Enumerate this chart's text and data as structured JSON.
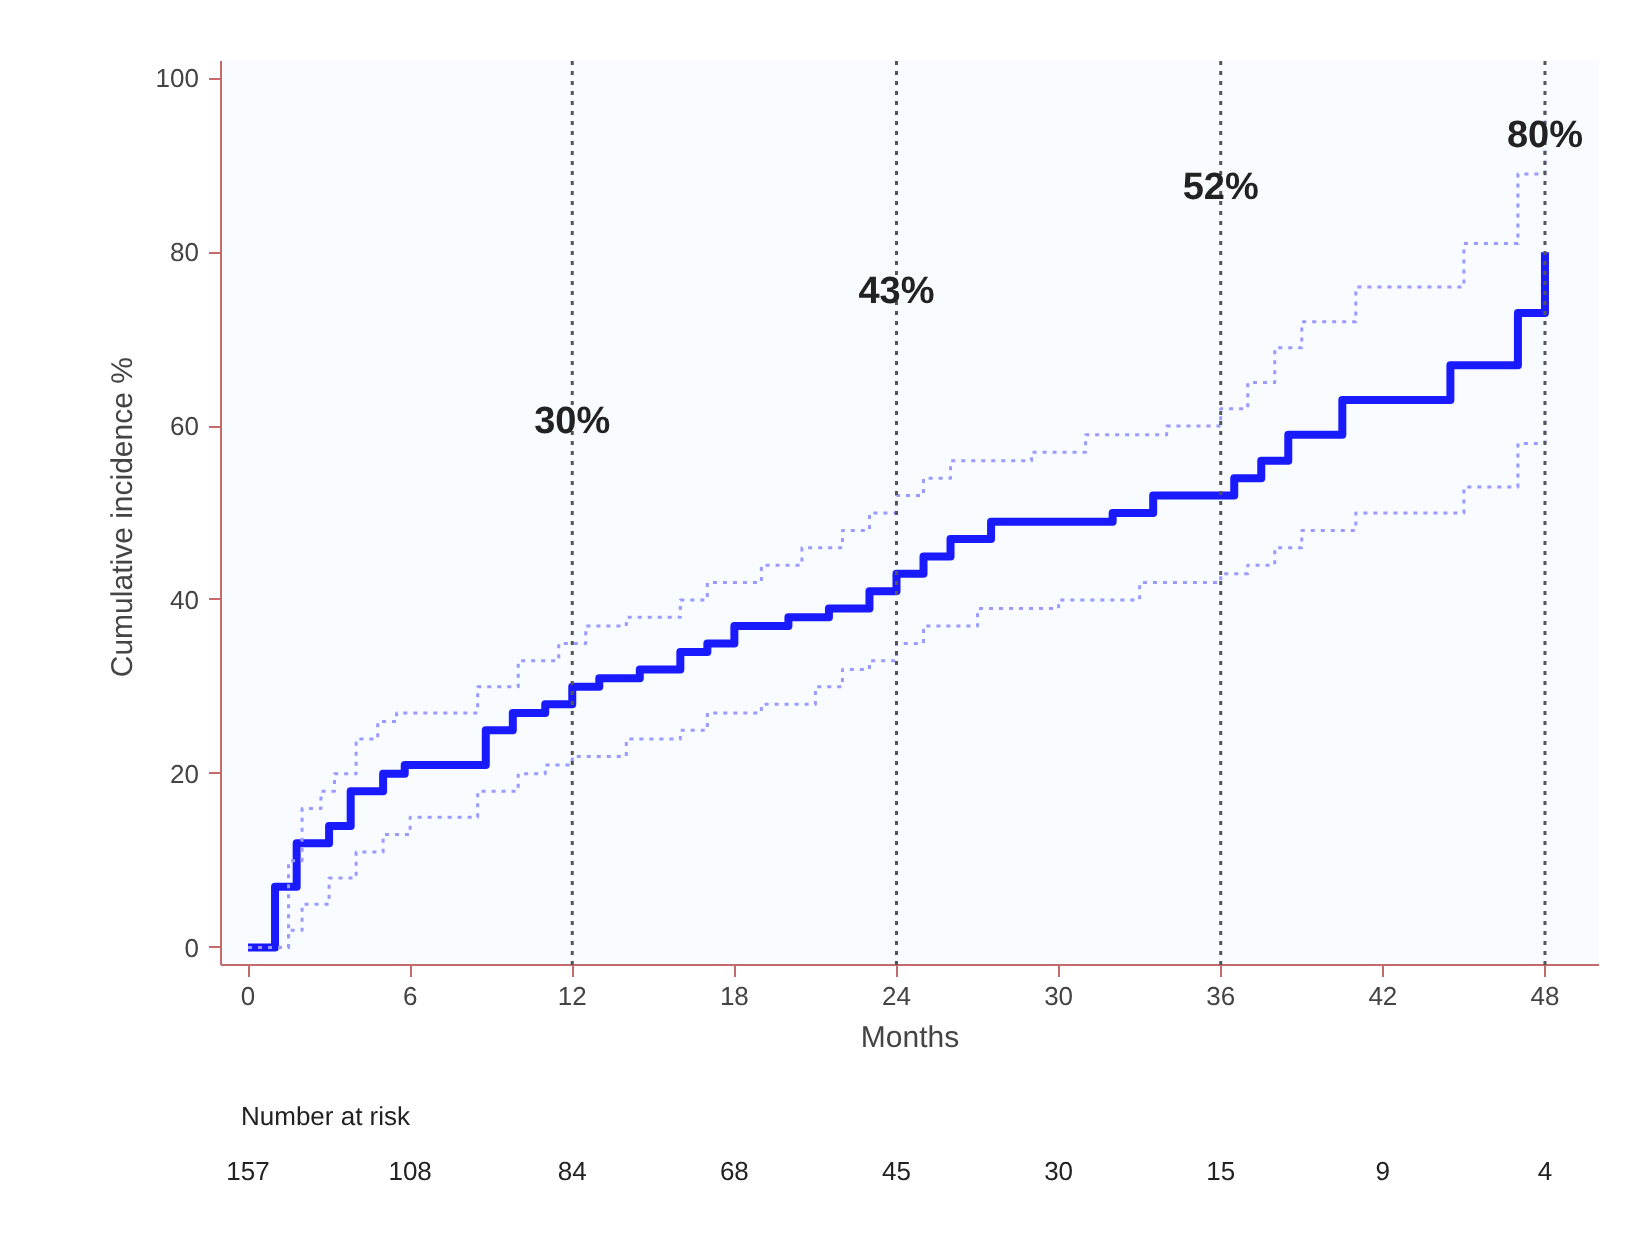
{
  "chart_data": {
    "type": "step",
    "xlabel": "Months",
    "ylabel": "Cumulative incidence  %",
    "x": [
      0,
      1.0,
      1.8,
      3.0,
      3.8,
      5.0,
      5.8,
      8.8,
      9.8,
      11,
      12,
      13,
      14.5,
      16,
      17,
      18,
      20,
      21.5,
      23,
      24,
      25,
      26,
      27.5,
      32,
      33.5,
      36.5,
      37.5,
      38.5,
      40.5,
      44.5,
      47,
      48
    ],
    "series": [
      {
        "color": "#1a1aff",
        "line_style": "solid",
        "values": [
          0,
          7,
          12,
          14,
          18,
          20,
          21,
          25,
          27,
          28,
          30,
          31,
          32,
          34,
          35,
          37,
          38,
          39,
          41,
          43,
          45,
          47,
          49,
          50,
          52,
          54,
          56,
          59,
          63,
          67,
          73,
          80
        ]
      },
      {
        "color": "#9a9aff",
        "line_style": "dotted",
        "x": [
          0,
          1.5,
          2,
          2.7,
          3.2,
          4,
          4.8,
          5.5,
          8.5,
          10,
          11.5,
          12.5,
          14,
          16,
          17,
          19,
          20.5,
          22,
          23,
          24,
          25,
          26,
          29,
          31,
          34,
          36,
          37,
          38,
          39,
          41,
          45,
          47,
          48
        ],
        "values": [
          0,
          10,
          16,
          18,
          20,
          24,
          26,
          27,
          30,
          33,
          35,
          37,
          38,
          40,
          42,
          44,
          46,
          48,
          50,
          52,
          54,
          56,
          57,
          59,
          60,
          62,
          65,
          69,
          72,
          76,
          81,
          89,
          97
        ]
      },
      {
        "color": "#9a9aff",
        "line_style": "dotted",
        "x": [
          0,
          1.5,
          2,
          3,
          4,
          5,
          6,
          8.5,
          10,
          11,
          12,
          14,
          16,
          17,
          19,
          21,
          22,
          23,
          24,
          25,
          27,
          30,
          33,
          36,
          37,
          38,
          39,
          41,
          45,
          47,
          48
        ],
        "values": [
          0,
          2,
          5,
          8,
          11,
          13,
          15,
          18,
          20,
          21,
          22,
          24,
          25,
          27,
          28,
          30,
          32,
          33,
          35,
          37,
          39,
          40,
          42,
          43,
          44,
          46,
          48,
          50,
          53,
          58,
          61
        ]
      }
    ],
    "xlim": [
      -1,
      50
    ],
    "ylim": [
      -2,
      102
    ],
    "xticks": [
      0,
      6,
      12,
      18,
      24,
      30,
      36,
      42,
      48
    ],
    "yticks": [
      0,
      20,
      40,
      60,
      80,
      100
    ],
    "grid": false,
    "marker": "none",
    "ref_lines": [
      {
        "axis": "x",
        "value": 12,
        "color": "#555555",
        "line_style": "dotted"
      },
      {
        "axis": "x",
        "value": 24,
        "color": "#555555",
        "line_style": "dotted"
      },
      {
        "axis": "x",
        "value": 36,
        "color": "#555555",
        "line_style": "dotted"
      },
      {
        "axis": "x",
        "value": 48,
        "color": "#555555",
        "line_style": "dotted"
      }
    ],
    "annotations": [
      {
        "text": "30%",
        "x": 12,
        "y": 58
      },
      {
        "text": "43%",
        "x": 24,
        "y": 73
      },
      {
        "text": "52%",
        "x": 36,
        "y": 85
      },
      {
        "text": "80%",
        "x": 48,
        "y": 91
      },
      "Number at risk",
      "157",
      "108",
      "84",
      "68",
      "45",
      "30",
      "15",
      "9",
      "4"
    ]
  }
}
